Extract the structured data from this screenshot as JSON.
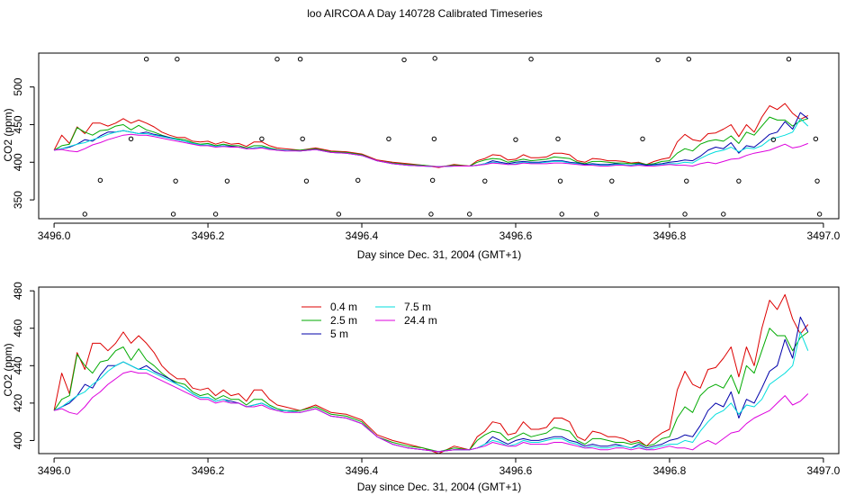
{
  "title": "loo AIRCOA A  Day 140728  Calibrated Timeseries",
  "colors": {
    "0.4 m": "#dd0000",
    "2.5 m": "#00aa00",
    "5 m": "#0000aa",
    "7.5 m": "#00dddd",
    "24.4 m": "#dd00dd",
    "axis": "#000000",
    "points": "#000000"
  },
  "chart_data": [
    {
      "type": "line",
      "panel": "top",
      "xlabel": "Day since Dec. 31, 2004 (GMT+1)",
      "ylabel": "CO2 (ppm)",
      "xlim": [
        3495.98,
        3497.02
      ],
      "ylim": [
        325,
        545
      ],
      "xticks": [
        3496.0,
        3496.2,
        3496.4,
        3496.6,
        3496.8,
        3497.0
      ],
      "xtick_labels": [
        "3496.0",
        "3496.2",
        "3496.4",
        "3496.6",
        "3496.8",
        "3497.0"
      ],
      "yticks": [
        350,
        400,
        450,
        500
      ],
      "ytick_labels": [
        "350",
        "400",
        "450",
        "500"
      ],
      "x": [
        3496.0,
        3496.01,
        3496.02,
        3496.03,
        3496.04,
        3496.05,
        3496.06,
        3496.07,
        3496.08,
        3496.09,
        3496.1,
        3496.11,
        3496.12,
        3496.13,
        3496.14,
        3496.15,
        3496.16,
        3496.17,
        3496.18,
        3496.19,
        3496.2,
        3496.21,
        3496.22,
        3496.23,
        3496.24,
        3496.25,
        3496.26,
        3496.27,
        3496.28,
        3496.29,
        3496.3,
        3496.32,
        3496.34,
        3496.36,
        3496.38,
        3496.4,
        3496.42,
        3496.44,
        3496.46,
        3496.48,
        3496.5,
        3496.52,
        3496.54,
        3496.55,
        3496.56,
        3496.57,
        3496.58,
        3496.59,
        3496.6,
        3496.61,
        3496.62,
        3496.63,
        3496.64,
        3496.65,
        3496.66,
        3496.67,
        3496.68,
        3496.69,
        3496.7,
        3496.71,
        3496.72,
        3496.73,
        3496.74,
        3496.75,
        3496.76,
        3496.77,
        3496.78,
        3496.79,
        3496.8,
        3496.81,
        3496.82,
        3496.83,
        3496.84,
        3496.85,
        3496.86,
        3496.87,
        3496.88,
        3496.89,
        3496.9,
        3496.91,
        3496.92,
        3496.93,
        3496.94,
        3496.95,
        3496.96,
        3496.97,
        3496.98
      ],
      "series": [
        {
          "name": "0.4 m",
          "values": [
            416,
            436,
            425,
            447,
            438,
            452,
            452,
            448,
            452,
            458,
            452,
            456,
            452,
            447,
            440,
            436,
            433,
            433,
            428,
            427,
            428,
            424,
            427,
            424,
            425,
            421,
            427,
            427,
            422,
            419,
            418,
            416,
            419,
            415,
            414,
            411,
            403,
            400,
            398,
            396,
            393,
            397,
            395,
            402,
            405,
            410,
            409,
            403,
            404,
            410,
            406,
            406,
            407,
            412,
            412,
            410,
            402,
            400,
            405,
            404,
            402,
            402,
            401,
            399,
            400,
            397,
            401,
            404,
            406,
            427,
            437,
            430,
            428,
            438,
            439,
            444,
            450,
            434,
            450,
            440,
            460,
            475,
            470,
            478,
            465,
            457,
            462
          ]
        },
        {
          "name": "2.5 m",
          "values": [
            416,
            422,
            424,
            446,
            440,
            436,
            442,
            443,
            448,
            450,
            443,
            449,
            443,
            440,
            436,
            433,
            431,
            430,
            426,
            424,
            425,
            422,
            424,
            422,
            422,
            419,
            422,
            422,
            419,
            417,
            416,
            416,
            418,
            414,
            413,
            410,
            402,
            399,
            397,
            396,
            394,
            396,
            395,
            400,
            403,
            405,
            404,
            400,
            402,
            404,
            402,
            403,
            404,
            407,
            406,
            405,
            400,
            398,
            401,
            401,
            400,
            399,
            399,
            398,
            399,
            397,
            398,
            401,
            402,
            412,
            418,
            415,
            424,
            428,
            430,
            428,
            435,
            425,
            440,
            436,
            448,
            460,
            456,
            456,
            448,
            455,
            458
          ]
        },
        {
          "name": "5 m",
          "values": [
            416,
            418,
            420,
            424,
            430,
            428,
            435,
            440,
            440,
            442,
            440,
            438,
            440,
            437,
            435,
            433,
            430,
            428,
            425,
            423,
            423,
            421,
            422,
            421,
            420,
            418,
            419,
            420,
            418,
            416,
            416,
            415,
            417,
            413,
            412,
            409,
            402,
            398,
            396,
            395,
            394,
            395,
            395,
            396,
            398,
            402,
            400,
            398,
            400,
            401,
            400,
            400,
            401,
            402,
            402,
            400,
            399,
            397,
            398,
            397,
            397,
            398,
            397,
            396,
            398,
            396,
            397,
            398,
            400,
            401,
            403,
            402,
            408,
            416,
            420,
            418,
            426,
            412,
            422,
            420,
            428,
            437,
            440,
            454,
            444,
            466,
            458
          ]
        },
        {
          "name": "7.5 m",
          "values": [
            416,
            418,
            421,
            424,
            426,
            430,
            433,
            437,
            440,
            442,
            440,
            438,
            438,
            436,
            434,
            432,
            430,
            428,
            425,
            423,
            423,
            421,
            422,
            420,
            420,
            418,
            419,
            420,
            418,
            416,
            416,
            415,
            417,
            413,
            412,
            409,
            402,
            398,
            396,
            395,
            394,
            395,
            395,
            396,
            398,
            400,
            399,
            397,
            398,
            400,
            399,
            399,
            400,
            401,
            401,
            399,
            398,
            396,
            397,
            396,
            396,
            397,
            397,
            396,
            397,
            395,
            396,
            397,
            398,
            398,
            400,
            399,
            405,
            410,
            414,
            416,
            420,
            414,
            419,
            418,
            422,
            430,
            433,
            436,
            440,
            458,
            448
          ]
        },
        {
          "name": "24.4 m",
          "values": [
            416,
            417,
            415,
            414,
            418,
            423,
            426,
            430,
            433,
            436,
            437,
            436,
            436,
            434,
            432,
            430,
            428,
            426,
            424,
            422,
            422,
            420,
            421,
            420,
            420,
            418,
            418,
            419,
            417,
            416,
            415,
            415,
            417,
            413,
            412,
            409,
            402,
            398,
            396,
            395,
            394,
            395,
            395,
            396,
            397,
            399,
            398,
            397,
            397,
            399,
            398,
            398,
            398,
            399,
            399,
            398,
            397,
            396,
            396,
            395,
            395,
            396,
            396,
            395,
            396,
            395,
            395,
            396,
            397,
            396,
            396,
            395,
            398,
            400,
            398,
            401,
            404,
            405,
            409,
            412,
            414,
            416,
            420,
            424,
            419,
            421,
            425
          ]
        }
      ],
      "points": {
        "x": [
          3496.04,
          3496.06,
          3496.1,
          3496.12,
          3496.155,
          3496.158,
          3496.16,
          3496.21,
          3496.225,
          3496.27,
          3496.29,
          3496.32,
          3496.323,
          3496.328,
          3496.37,
          3496.395,
          3496.435,
          3496.455,
          3496.49,
          3496.492,
          3496.494,
          3496.495,
          3496.54,
          3496.56,
          3496.6,
          3496.62,
          3496.655,
          3496.658,
          3496.66,
          3496.705,
          3496.725,
          3496.765,
          3496.785,
          3496.82,
          3496.822,
          3496.825,
          3496.87,
          3496.89,
          3496.935,
          3496.955,
          3496.99,
          3496.992,
          3496.995
        ],
        "y": [
          331,
          376,
          431,
          537,
          331,
          375,
          537,
          331,
          375,
          431,
          537,
          537,
          431,
          375,
          331,
          376,
          431,
          536,
          331,
          376,
          431,
          538,
          331,
          375,
          430,
          537,
          431,
          375,
          331,
          331,
          375,
          431,
          536,
          331,
          375,
          537,
          331,
          375,
          430,
          537,
          431,
          375,
          331
        ]
      }
    },
    {
      "type": "line",
      "panel": "bottom",
      "xlabel": "Day since Dec. 31, 2004 (GMT+1)",
      "ylabel": "CO2 (ppm)",
      "xlim": [
        3495.98,
        3497.02
      ],
      "ylim": [
        393,
        482
      ],
      "xticks": [
        3496.0,
        3496.2,
        3496.4,
        3496.6,
        3496.8,
        3497.0
      ],
      "xtick_labels": [
        "3496.0",
        "3496.2",
        "3496.4",
        "3496.6",
        "3496.8",
        "3497.0"
      ],
      "yticks": [
        400,
        420,
        440,
        460,
        480
      ],
      "ytick_labels": [
        "400",
        "420",
        "440",
        "460",
        "480"
      ],
      "legend": {
        "position": "top-left",
        "entries": [
          "0.4 m",
          "2.5 m",
          "5 m",
          "7.5 m",
          "24.4 m"
        ]
      },
      "series_ref": "same series as top panel"
    }
  ]
}
